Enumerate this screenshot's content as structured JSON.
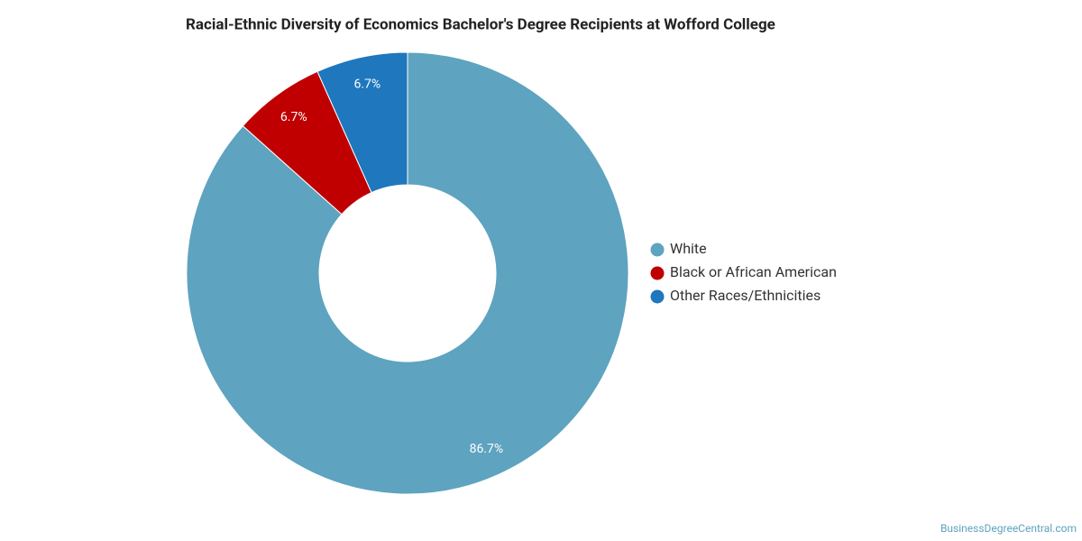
{
  "chart_data": {
    "type": "pie",
    "title": "Racial-Ethnic Diversity of Economics Bachelor's Degree Recipients at Wofford College",
    "categories": [
      "White",
      "Black or African American",
      "Other Races/Ethnicities"
    ],
    "values": [
      86.7,
      6.7,
      6.7
    ],
    "value_labels": [
      "86.7%",
      "6.7%",
      "6.7%"
    ],
    "colors": [
      "#5ea3bf",
      "#c00000",
      "#1f77bd"
    ],
    "legend": "right",
    "credit": "BusinessDegreeCentral.com"
  }
}
